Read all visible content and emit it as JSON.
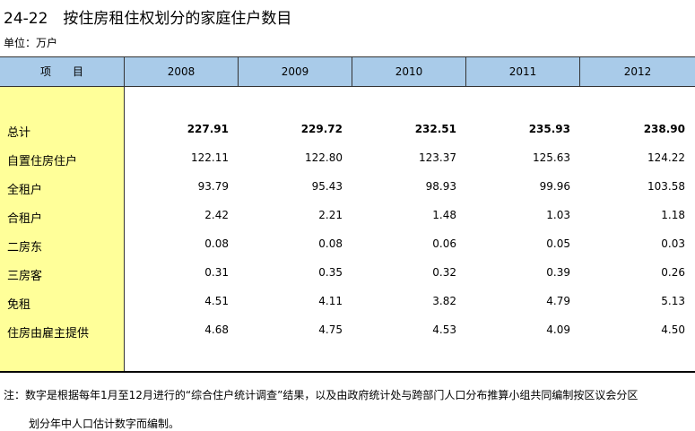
{
  "header": {
    "title": "24-22　按住房租住权划分的家庭住户数目",
    "unit": "单位：万户"
  },
  "table": {
    "columns": [
      "项　　目",
      "2008",
      "2009",
      "2010",
      "2011",
      "2012"
    ],
    "rows": [
      [
        "总计",
        "227.91",
        "229.72",
        "232.51",
        "235.93",
        "238.90"
      ],
      [
        "自置住房住户",
        "122.11",
        "122.80",
        "123.37",
        "125.63",
        "124.22"
      ],
      [
        "全租户",
        "93.79",
        "95.43",
        "98.93",
        "99.96",
        "103.58"
      ],
      [
        "合租户",
        "2.42",
        "2.21",
        "1.48",
        "1.03",
        "1.18"
      ],
      [
        "二房东",
        "0.08",
        "0.08",
        "0.06",
        "0.05",
        "0.03"
      ],
      [
        "三房客",
        "0.31",
        "0.35",
        "0.32",
        "0.39",
        "0.26"
      ],
      [
        "免租",
        "4.51",
        "4.11",
        "3.82",
        "4.79",
        "5.13"
      ],
      [
        "住房由雇主提供",
        "4.68",
        "4.75",
        "4.53",
        "4.09",
        "4.50"
      ]
    ]
  },
  "note": [
    "注：数字是根据每年1月至12月进行的“综合住户统计调查”结果，以及由政府统计处与跨部门人口分布推算小组共同编制按区议会分区",
    "划分年中人口估计数字而编制。"
  ]
}
